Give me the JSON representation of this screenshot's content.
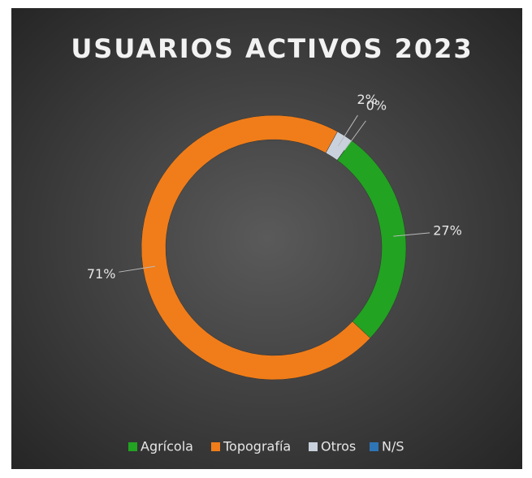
{
  "chart_data": {
    "type": "donut",
    "title": "USUARIOS ACTIVOS 2023",
    "categories": [
      "Agrícola",
      "Topografía",
      "Otros",
      "N/S"
    ],
    "values": [
      27,
      71,
      2,
      0
    ],
    "value_labels": [
      "27%",
      "71%",
      "2%",
      "0%"
    ],
    "colors": [
      "#22a322",
      "#f07d1a",
      "#c9d1dd",
      "#2e75b6"
    ],
    "legend": "bottom"
  }
}
